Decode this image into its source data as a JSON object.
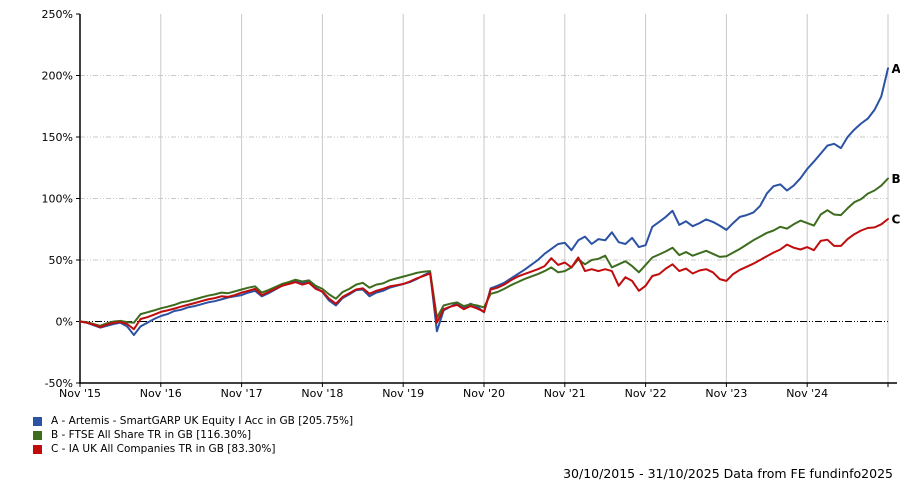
{
  "chart_data": {
    "type": "line",
    "title": "",
    "x": {
      "months_total": 120,
      "tick_interval_months": 12,
      "tick_labels": [
        "Nov '15",
        "Nov '16",
        "Nov '17",
        "Nov '18",
        "Nov '19",
        "Nov '20",
        "Nov '21",
        "Nov '22",
        "Nov '23",
        "Nov '24"
      ]
    },
    "y": {
      "min": -50,
      "max": 250,
      "tick_step": 50,
      "tick_labels": [
        "-50%",
        "0%",
        "50%",
        "100%",
        "150%",
        "200%",
        "250%"
      ],
      "unit": "percent total return"
    },
    "grid": {
      "vertical": true,
      "horizontal": true,
      "zero_line": true
    },
    "series": [
      {
        "key": "A",
        "label": "Artemis - SmartGARP UK Equity I Acc in GB",
        "final_value_pct": 205.75,
        "color": "#2b52a3",
        "monthly_values_pct": [
          0,
          -1,
          -3,
          -5,
          -3.5,
          -2,
          -1,
          -4,
          -11,
          -4,
          -1,
          2,
          4.5,
          6,
          8.5,
          9.5,
          11.5,
          12.5,
          14,
          15.5,
          16.5,
          18,
          19.5,
          20.5,
          21.5,
          23.5,
          25,
          20.5,
          23,
          26,
          29,
          31,
          33.5,
          31.5,
          33,
          27.5,
          24,
          17,
          13,
          19,
          22,
          25.5,
          26,
          20.5,
          23.5,
          25,
          27.5,
          29,
          30.5,
          32,
          34.5,
          37.5,
          40,
          -8,
          9,
          12,
          15,
          11,
          14.5,
          12,
          7.5,
          27,
          29,
          31.5,
          35,
          38.5,
          42,
          46,
          50,
          55,
          59,
          63,
          64,
          58,
          66,
          69,
          63,
          67,
          66,
          72.5,
          64.5,
          63,
          68,
          60.5,
          62,
          77,
          81,
          85,
          90,
          78.5,
          81.5,
          77.5,
          80,
          83,
          81,
          78,
          74.5,
          80,
          85,
          86.5,
          88.5,
          94,
          104,
          110,
          111.5,
          106.5,
          110.5,
          116.5,
          124,
          130,
          136.5,
          143,
          144.5,
          141,
          150,
          156,
          161,
          165,
          172,
          183,
          205.75
        ]
      },
      {
        "key": "B",
        "label": "FTSE All Share TR in GB",
        "final_value_pct": 116.3,
        "color": "#3e6c1e",
        "monthly_values_pct": [
          0,
          -0.5,
          -2,
          -3.5,
          -1.5,
          0,
          0.5,
          -0.5,
          -1,
          6,
          7.5,
          9,
          10.7,
          12,
          13.5,
          15.5,
          16.5,
          18,
          19.5,
          21,
          22,
          23.5,
          23,
          24.5,
          26,
          27.5,
          28.5,
          23.5,
          25.5,
          28,
          30.5,
          32,
          34,
          32.5,
          33.5,
          29,
          26.5,
          22,
          18.5,
          24,
          26.5,
          30,
          31.5,
          27.5,
          30,
          31,
          33.5,
          35,
          36.5,
          38,
          39.5,
          40.5,
          41,
          3,
          13,
          14.5,
          15.5,
          12.5,
          14,
          13,
          11.5,
          22.5,
          24,
          26.5,
          29.5,
          32,
          34.5,
          36.5,
          38.5,
          41,
          44,
          40,
          41,
          44,
          50.5,
          46.5,
          50,
          51,
          53.5,
          44,
          46.5,
          49,
          45,
          40,
          46,
          52,
          54.5,
          57,
          60,
          54,
          56.5,
          53.5,
          55.5,
          57.5,
          55,
          52.5,
          53,
          56,
          59,
          62.5,
          66,
          69,
          72,
          74,
          77,
          75.5,
          79,
          82,
          80,
          78,
          87,
          90.5,
          87,
          86.5,
          92,
          97,
          99.5,
          104,
          106.5,
          110.5,
          116.3
        ]
      },
      {
        "key": "C",
        "label": "IA UK All Companies TR in GB",
        "final_value_pct": 83.3,
        "color": "#c00c0c",
        "monthly_values_pct": [
          0,
          -1,
          -2.5,
          -4.5,
          -2.5,
          -1,
          -0.5,
          -2,
          -6.3,
          2,
          3.5,
          5.5,
          7.8,
          9,
          10.5,
          12,
          13.5,
          15,
          16.5,
          18,
          19,
          20.5,
          20,
          21.5,
          23.5,
          25,
          26.5,
          21.5,
          24,
          26.5,
          29,
          30.5,
          32,
          30,
          31.5,
          26.5,
          24.5,
          18.5,
          14.5,
          20,
          23,
          26,
          27,
          22.5,
          25,
          26.5,
          28.5,
          29.5,
          30.5,
          32.5,
          35,
          37,
          39,
          -1,
          10,
          12,
          13.5,
          10,
          12.5,
          10.5,
          8,
          26,
          27.5,
          30,
          33.5,
          36.5,
          38.5,
          40.5,
          42.5,
          45,
          51.5,
          46,
          48,
          44,
          52,
          41,
          42.5,
          41,
          42.5,
          41,
          29,
          36,
          33,
          25,
          29,
          37,
          38.5,
          43,
          46.5,
          41,
          43,
          39,
          41.5,
          42.5,
          40,
          34.5,
          33,
          38.5,
          42,
          44.5,
          47,
          50,
          53,
          56,
          58.5,
          62.5,
          60,
          58.5,
          60.5,
          58,
          65.5,
          66.5,
          61.5,
          61.5,
          67,
          71,
          74,
          76,
          76.5,
          79,
          83.3
        ]
      }
    ]
  },
  "legend": {
    "items": [
      {
        "key": "A",
        "color": "#2b52a3",
        "label": "A - Artemis - SmartGARP UK Equity I Acc in GB [205.75%]"
      },
      {
        "key": "B",
        "color": "#3e6c1e",
        "label": "B - FTSE All Share TR in GB [116.30%]"
      },
      {
        "key": "C",
        "color": "#c00c0c",
        "label": "C - IA UK All Companies TR in GB [83.30%]"
      }
    ]
  },
  "footer": {
    "text": "30/10/2015 - 31/10/2025 Data from FE fundinfo2025"
  }
}
